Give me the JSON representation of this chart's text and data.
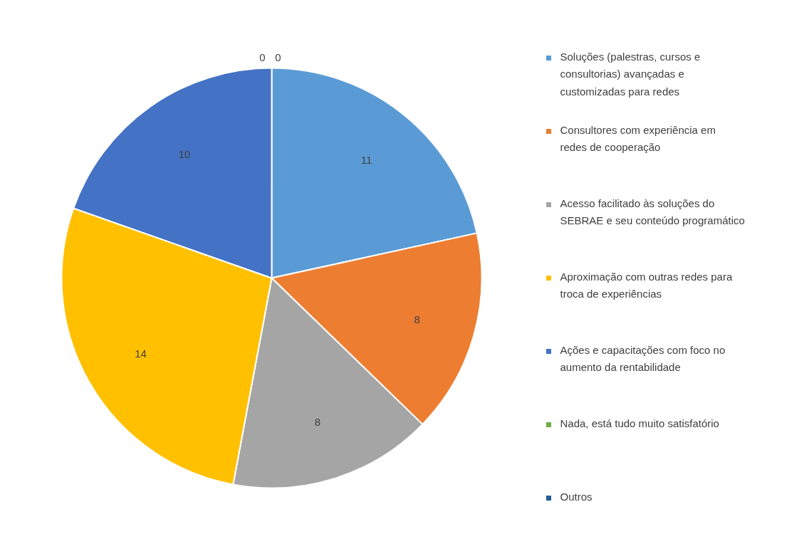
{
  "chart_data": {
    "type": "pie",
    "categories": [
      "Soluções (palestras, cursos e consultorias) avançadas e customizadas para redes",
      "Consultores com experiência em redes de cooperação",
      "Acesso facilitado às soluções do SEBRAE e seu conteúdo programático",
      "Aproximação com outras redes para troca de experiências",
      "Ações e capacitações com foco no aumento da rentabilidade",
      "Nada, está tudo muito satisfatório",
      "Outros"
    ],
    "values": [
      11,
      8,
      8,
      14,
      10,
      0,
      0
    ],
    "colors": [
      "#5b9bd5",
      "#ed7d31",
      "#a5a5a5",
      "#ffc000",
      "#4472c4",
      "#70ad47",
      "#255e91"
    ],
    "value_labels": [
      "11",
      "8",
      "8",
      "14",
      "10",
      "0",
      "0"
    ],
    "legend": "right"
  }
}
